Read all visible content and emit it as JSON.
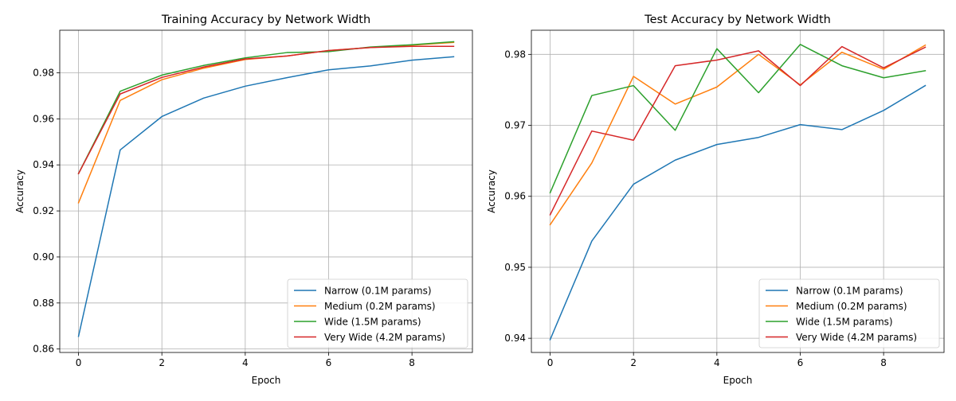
{
  "chart_data": [
    {
      "type": "line",
      "title": "Training Accuracy by Network Width",
      "xlabel": "Epoch",
      "ylabel": "Accuracy",
      "xlim": [
        -0.45,
        9.45
      ],
      "ylim": [
        0.8585,
        0.9985
      ],
      "xticks": [
        0,
        2,
        4,
        6,
        8
      ],
      "xtick_labels": [
        "0",
        "2",
        "4",
        "6",
        "8"
      ],
      "yticks": [
        0.86,
        0.88,
        0.9,
        0.92,
        0.94,
        0.96,
        0.98
      ],
      "ytick_labels": [
        "0.86",
        "0.88",
        "0.90",
        "0.92",
        "0.94",
        "0.96",
        "0.98"
      ],
      "grid": true,
      "legend_position": "lower-right",
      "x": [
        0,
        1,
        2,
        3,
        4,
        5,
        6,
        7,
        8,
        9
      ],
      "series": [
        {
          "name": "Narrow (0.1M params)",
          "color": "#1f77b4",
          "values": [
            0.8655,
            0.9465,
            0.961,
            0.969,
            0.9742,
            0.9779,
            0.9813,
            0.983,
            0.9855,
            0.987
          ]
        },
        {
          "name": "Medium (0.2M params)",
          "color": "#ff7f0e",
          "values": [
            0.9235,
            0.968,
            0.977,
            0.982,
            0.9858,
            0.9873,
            0.9897,
            0.991,
            0.992,
            0.9932
          ]
        },
        {
          "name": "Wide (1.5M params)",
          "color": "#2ca02c",
          "values": [
            0.9362,
            0.972,
            0.979,
            0.9832,
            0.9865,
            0.9888,
            0.9892,
            0.9912,
            0.9922,
            0.9935
          ]
        },
        {
          "name": "Very Wide (4.2M params)",
          "color": "#d62728",
          "values": [
            0.9362,
            0.9708,
            0.978,
            0.9825,
            0.986,
            0.9873,
            0.9897,
            0.991,
            0.9915,
            0.9915
          ]
        }
      ]
    },
    {
      "type": "line",
      "title": "Test Accuracy by Network Width",
      "xlabel": "Epoch",
      "ylabel": "Accuracy",
      "xlim": [
        -0.45,
        9.45
      ],
      "ylim": [
        0.938,
        0.9834
      ],
      "xticks": [
        0,
        2,
        4,
        6,
        8
      ],
      "xtick_labels": [
        "0",
        "2",
        "4",
        "6",
        "8"
      ],
      "yticks": [
        0.94,
        0.95,
        0.96,
        0.97,
        0.98
      ],
      "ytick_labels": [
        "0.94",
        "0.95",
        "0.96",
        "0.97",
        "0.98"
      ],
      "grid": true,
      "legend_position": "lower-right",
      "x": [
        0,
        1,
        2,
        3,
        4,
        5,
        6,
        7,
        8,
        9
      ],
      "series": [
        {
          "name": "Narrow (0.1M params)",
          "color": "#1f77b4",
          "values": [
            0.9398,
            0.9537,
            0.9617,
            0.9651,
            0.9673,
            0.9683,
            0.9701,
            0.9694,
            0.9721,
            0.9756
          ]
        },
        {
          "name": "Medium (0.2M params)",
          "color": "#ff7f0e",
          "values": [
            0.956,
            0.9647,
            0.9769,
            0.973,
            0.9754,
            0.98,
            0.9757,
            0.9803,
            0.9779,
            0.9813
          ]
        },
        {
          "name": "Wide (1.5M params)",
          "color": "#2ca02c",
          "values": [
            0.9605,
            0.9742,
            0.9756,
            0.9693,
            0.9808,
            0.9746,
            0.9814,
            0.9784,
            0.9767,
            0.9777
          ]
        },
        {
          "name": "Very Wide (4.2M params)",
          "color": "#d62728",
          "values": [
            0.9574,
            0.9692,
            0.9679,
            0.9784,
            0.9792,
            0.9805,
            0.9756,
            0.9811,
            0.9781,
            0.981
          ]
        }
      ]
    }
  ]
}
